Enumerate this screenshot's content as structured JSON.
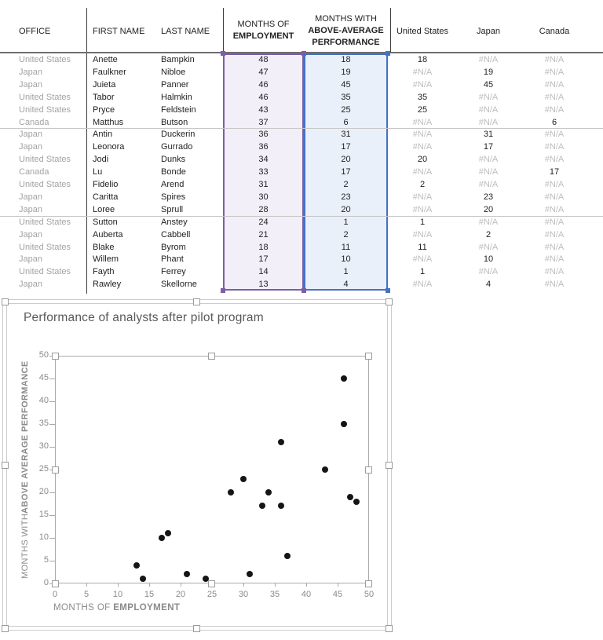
{
  "colors": {
    "purple": "#7B5EA7",
    "purple_fill": "#F2EFF9",
    "blue": "#4472C4",
    "blue_fill": "#EAF0FA",
    "office_text": "#A3A3A3",
    "na_text": "#BDBDBD",
    "dark_text": "#1F1F1F",
    "chart_text": "#8A8A8A",
    "title_text": "#595959",
    "point": "#151515"
  },
  "table": {
    "headers": {
      "office": "OFFICE",
      "first_name": "FIRST NAME",
      "last_name": "LAST NAME",
      "employment_line1": "MONTHS OF",
      "employment_line2": "EMPLOYMENT",
      "performance_line1": "MONTHS WITH",
      "performance_line2": "ABOVE-AVERAGE",
      "performance_line3": "PERFORMANCE",
      "us": "United States",
      "japan": "Japan",
      "canada": "Canada"
    },
    "na": "#N/A",
    "group_separators_after_rows": [
      6,
      13
    ],
    "rows": [
      {
        "office": "United States",
        "first": "Anette",
        "last": "Bampkin",
        "employment": 48,
        "performance": 18,
        "us": "18",
        "japan": "#N/A",
        "canada": "#N/A"
      },
      {
        "office": "Japan",
        "first": "Faulkner",
        "last": "Nibloe",
        "employment": 47,
        "performance": 19,
        "us": "#N/A",
        "japan": "19",
        "canada": "#N/A"
      },
      {
        "office": "Japan",
        "first": "Juieta",
        "last": "Panner",
        "employment": 46,
        "performance": 45,
        "us": "#N/A",
        "japan": "45",
        "canada": "#N/A"
      },
      {
        "office": "United States",
        "first": "Tabor",
        "last": "Halmkin",
        "employment": 46,
        "performance": 35,
        "us": "35",
        "japan": "#N/A",
        "canada": "#N/A"
      },
      {
        "office": "United States",
        "first": "Pryce",
        "last": "Feldstein",
        "employment": 43,
        "performance": 25,
        "us": "25",
        "japan": "#N/A",
        "canada": "#N/A"
      },
      {
        "office": "Canada",
        "first": "Matthus",
        "last": "Butson",
        "employment": 37,
        "performance": 6,
        "us": "#N/A",
        "japan": "#N/A",
        "canada": "6"
      },
      {
        "office": "Japan",
        "first": "Antin",
        "last": "Duckerin",
        "employment": 36,
        "performance": 31,
        "us": "#N/A",
        "japan": "31",
        "canada": "#N/A"
      },
      {
        "office": "Japan",
        "first": "Leonora",
        "last": "Gurrado",
        "employment": 36,
        "performance": 17,
        "us": "#N/A",
        "japan": "17",
        "canada": "#N/A"
      },
      {
        "office": "United States",
        "first": "Jodi",
        "last": "Dunks",
        "employment": 34,
        "performance": 20,
        "us": "20",
        "japan": "#N/A",
        "canada": "#N/A"
      },
      {
        "office": "Canada",
        "first": "Lu",
        "last": "Bonde",
        "employment": 33,
        "performance": 17,
        "us": "#N/A",
        "japan": "#N/A",
        "canada": "17"
      },
      {
        "office": "United States",
        "first": "Fidelio",
        "last": "Arend",
        "employment": 31,
        "performance": 2,
        "us": "2",
        "japan": "#N/A",
        "canada": "#N/A"
      },
      {
        "office": "Japan",
        "first": "Caritta",
        "last": "Spires",
        "employment": 30,
        "performance": 23,
        "us": "#N/A",
        "japan": "23",
        "canada": "#N/A"
      },
      {
        "office": "Japan",
        "first": "Loree",
        "last": "Sprull",
        "employment": 28,
        "performance": 20,
        "us": "#N/A",
        "japan": "20",
        "canada": "#N/A"
      },
      {
        "office": "United States",
        "first": "Sutton",
        "last": "Anstey",
        "employment": 24,
        "performance": 1,
        "us": "1",
        "japan": "#N/A",
        "canada": "#N/A"
      },
      {
        "office": "Japan",
        "first": "Auberta",
        "last": "Cabbell",
        "employment": 21,
        "performance": 2,
        "us": "#N/A",
        "japan": "2",
        "canada": "#N/A"
      },
      {
        "office": "United States",
        "first": "Blake",
        "last": "Byrom",
        "employment": 18,
        "performance": 11,
        "us": "11",
        "japan": "#N/A",
        "canada": "#N/A"
      },
      {
        "office": "Japan",
        "first": "Willem",
        "last": "Phant",
        "employment": 17,
        "performance": 10,
        "us": "#N/A",
        "japan": "10",
        "canada": "#N/A"
      },
      {
        "office": "United States",
        "first": "Fayth",
        "last": "Ferrey",
        "employment": 14,
        "performance": 1,
        "us": "1",
        "japan": "#N/A",
        "canada": "#N/A"
      },
      {
        "office": "Japan",
        "first": "Rawley",
        "last": "Skellorne",
        "employment": 13,
        "performance": 4,
        "us": "#N/A",
        "japan": "4",
        "canada": "#N/A"
      }
    ]
  },
  "chart": {
    "title": "Performance of analysts after pilot program",
    "x_axis": {
      "label_normal": "MONTHS OF ",
      "label_bold": "EMPLOYMENT",
      "ticks": [
        0,
        5,
        10,
        15,
        20,
        25,
        30,
        35,
        40,
        45,
        50
      ]
    },
    "y_axis": {
      "label_normal": "MONTHS WITH ",
      "label_bold": "ABOVE AVERAGE PERFORMANCE",
      "ticks": [
        0,
        5,
        10,
        15,
        20,
        25,
        30,
        35,
        40,
        45,
        50
      ]
    }
  },
  "chart_data": {
    "type": "scatter",
    "title": "Performance of analysts after pilot program",
    "xlabel": "MONTHS OF EMPLOYMENT",
    "ylabel": "MONTHS WITH ABOVE AVERAGE PERFORMANCE",
    "xlim": [
      0,
      50
    ],
    "ylim": [
      0,
      50
    ],
    "grid": false,
    "legend": "none",
    "points": [
      [
        48,
        18
      ],
      [
        47,
        19
      ],
      [
        46,
        45
      ],
      [
        46,
        35
      ],
      [
        43,
        25
      ],
      [
        37,
        6
      ],
      [
        36,
        31
      ],
      [
        36,
        17
      ],
      [
        34,
        20
      ],
      [
        33,
        17
      ],
      [
        31,
        2
      ],
      [
        30,
        23
      ],
      [
        28,
        20
      ],
      [
        24,
        1
      ],
      [
        21,
        2
      ],
      [
        18,
        11
      ],
      [
        17,
        10
      ],
      [
        14,
        1
      ],
      [
        13,
        4
      ]
    ]
  }
}
